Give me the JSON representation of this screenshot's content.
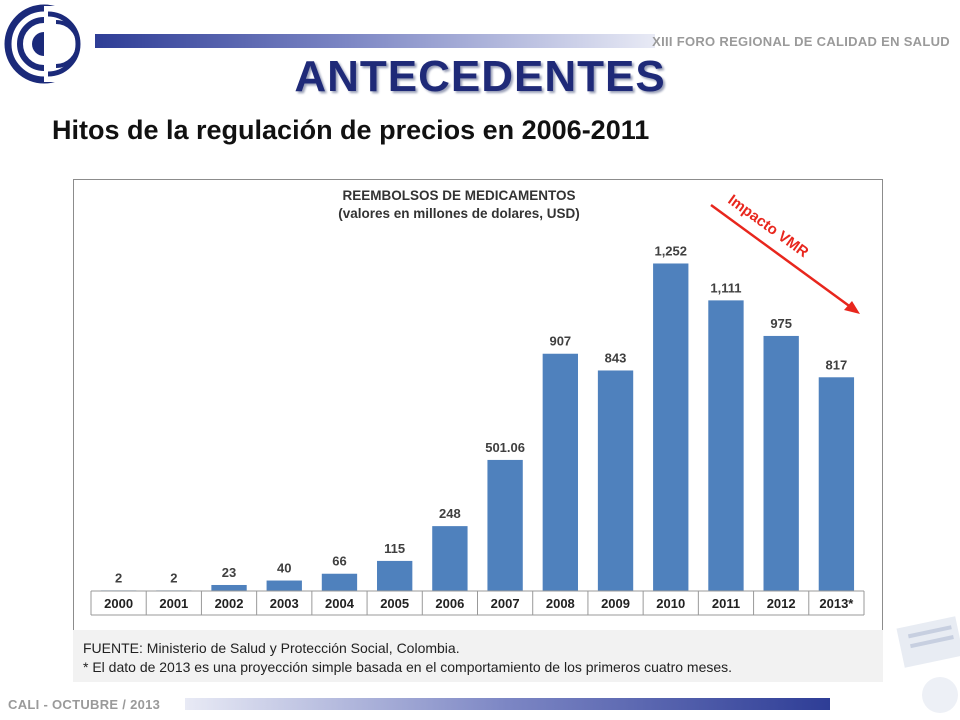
{
  "header": {
    "event_title": "XIII FORO REGIONAL DE CALIDAD EN SALUD"
  },
  "slide": {
    "title": "ANTECEDENTES",
    "subtitle": "Hitos de la regulación de precios en 2006-2011"
  },
  "chart_data": {
    "type": "bar",
    "title": "REEMBOLSOS DE MEDICAMENTOS",
    "subtitle": "(valores en millones de dolares, USD)",
    "categories": [
      "2000",
      "2001",
      "2002",
      "2003",
      "2004",
      "2005",
      "2006",
      "2007",
      "2008",
      "2009",
      "2010",
      "2011",
      "2012",
      "2013*"
    ],
    "values": [
      2,
      2,
      23,
      40,
      66,
      115,
      248,
      501.06,
      907,
      843,
      1252,
      1111,
      975,
      817
    ],
    "data_labels": [
      "2",
      "2",
      "23",
      "40",
      "66",
      "115",
      "248",
      "501.06",
      "907",
      "843",
      "1,252",
      "1,111",
      "975",
      "817"
    ],
    "ylim": [
      0,
      1380
    ],
    "grid": false,
    "annotation": "Impacto VMR",
    "colors": {
      "bar": "#4f81bd",
      "annotation": "#e8261d"
    }
  },
  "source": {
    "line1": "FUENTE: Ministerio de Salud y Protección Social, Colombia.",
    "line2": "* El dato de 2013 es una proyección simple basada en el comportamiento de los primeros cuatro meses."
  },
  "footer": {
    "text": "CALI - OCTUBRE  / 2013"
  }
}
